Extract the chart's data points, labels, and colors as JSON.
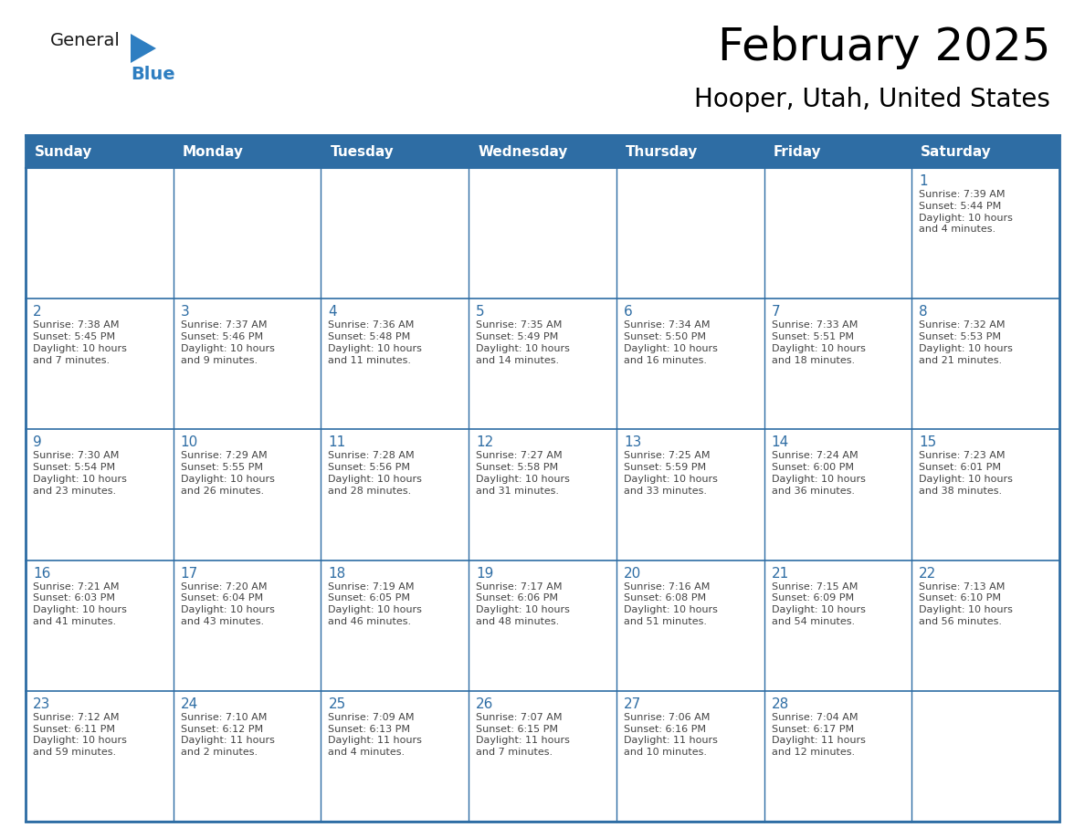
{
  "title": "February 2025",
  "subtitle": "Hooper, Utah, United States",
  "header_bg": "#2E6DA4",
  "header_text": "#FFFFFF",
  "cell_bg_white": "#FFFFFF",
  "cell_bg_light": "#F2F2F2",
  "border_color": "#2E6DA4",
  "border_color_light": "#AAAAAA",
  "day_number_color": "#2E6DA4",
  "cell_text_color": "#444444",
  "days_of_week": [
    "Sunday",
    "Monday",
    "Tuesday",
    "Wednesday",
    "Thursday",
    "Friday",
    "Saturday"
  ],
  "weeks": [
    [
      {
        "day": "",
        "text": ""
      },
      {
        "day": "",
        "text": ""
      },
      {
        "day": "",
        "text": ""
      },
      {
        "day": "",
        "text": ""
      },
      {
        "day": "",
        "text": ""
      },
      {
        "day": "",
        "text": ""
      },
      {
        "day": "1",
        "text": "Sunrise: 7:39 AM\nSunset: 5:44 PM\nDaylight: 10 hours\nand 4 minutes."
      }
    ],
    [
      {
        "day": "2",
        "text": "Sunrise: 7:38 AM\nSunset: 5:45 PM\nDaylight: 10 hours\nand 7 minutes."
      },
      {
        "day": "3",
        "text": "Sunrise: 7:37 AM\nSunset: 5:46 PM\nDaylight: 10 hours\nand 9 minutes."
      },
      {
        "day": "4",
        "text": "Sunrise: 7:36 AM\nSunset: 5:48 PM\nDaylight: 10 hours\nand 11 minutes."
      },
      {
        "day": "5",
        "text": "Sunrise: 7:35 AM\nSunset: 5:49 PM\nDaylight: 10 hours\nand 14 minutes."
      },
      {
        "day": "6",
        "text": "Sunrise: 7:34 AM\nSunset: 5:50 PM\nDaylight: 10 hours\nand 16 minutes."
      },
      {
        "day": "7",
        "text": "Sunrise: 7:33 AM\nSunset: 5:51 PM\nDaylight: 10 hours\nand 18 minutes."
      },
      {
        "day": "8",
        "text": "Sunrise: 7:32 AM\nSunset: 5:53 PM\nDaylight: 10 hours\nand 21 minutes."
      }
    ],
    [
      {
        "day": "9",
        "text": "Sunrise: 7:30 AM\nSunset: 5:54 PM\nDaylight: 10 hours\nand 23 minutes."
      },
      {
        "day": "10",
        "text": "Sunrise: 7:29 AM\nSunset: 5:55 PM\nDaylight: 10 hours\nand 26 minutes."
      },
      {
        "day": "11",
        "text": "Sunrise: 7:28 AM\nSunset: 5:56 PM\nDaylight: 10 hours\nand 28 minutes."
      },
      {
        "day": "12",
        "text": "Sunrise: 7:27 AM\nSunset: 5:58 PM\nDaylight: 10 hours\nand 31 minutes."
      },
      {
        "day": "13",
        "text": "Sunrise: 7:25 AM\nSunset: 5:59 PM\nDaylight: 10 hours\nand 33 minutes."
      },
      {
        "day": "14",
        "text": "Sunrise: 7:24 AM\nSunset: 6:00 PM\nDaylight: 10 hours\nand 36 minutes."
      },
      {
        "day": "15",
        "text": "Sunrise: 7:23 AM\nSunset: 6:01 PM\nDaylight: 10 hours\nand 38 minutes."
      }
    ],
    [
      {
        "day": "16",
        "text": "Sunrise: 7:21 AM\nSunset: 6:03 PM\nDaylight: 10 hours\nand 41 minutes."
      },
      {
        "day": "17",
        "text": "Sunrise: 7:20 AM\nSunset: 6:04 PM\nDaylight: 10 hours\nand 43 minutes."
      },
      {
        "day": "18",
        "text": "Sunrise: 7:19 AM\nSunset: 6:05 PM\nDaylight: 10 hours\nand 46 minutes."
      },
      {
        "day": "19",
        "text": "Sunrise: 7:17 AM\nSunset: 6:06 PM\nDaylight: 10 hours\nand 48 minutes."
      },
      {
        "day": "20",
        "text": "Sunrise: 7:16 AM\nSunset: 6:08 PM\nDaylight: 10 hours\nand 51 minutes."
      },
      {
        "day": "21",
        "text": "Sunrise: 7:15 AM\nSunset: 6:09 PM\nDaylight: 10 hours\nand 54 minutes."
      },
      {
        "day": "22",
        "text": "Sunrise: 7:13 AM\nSunset: 6:10 PM\nDaylight: 10 hours\nand 56 minutes."
      }
    ],
    [
      {
        "day": "23",
        "text": "Sunrise: 7:12 AM\nSunset: 6:11 PM\nDaylight: 10 hours\nand 59 minutes."
      },
      {
        "day": "24",
        "text": "Sunrise: 7:10 AM\nSunset: 6:12 PM\nDaylight: 11 hours\nand 2 minutes."
      },
      {
        "day": "25",
        "text": "Sunrise: 7:09 AM\nSunset: 6:13 PM\nDaylight: 11 hours\nand 4 minutes."
      },
      {
        "day": "26",
        "text": "Sunrise: 7:07 AM\nSunset: 6:15 PM\nDaylight: 11 hours\nand 7 minutes."
      },
      {
        "day": "27",
        "text": "Sunrise: 7:06 AM\nSunset: 6:16 PM\nDaylight: 11 hours\nand 10 minutes."
      },
      {
        "day": "28",
        "text": "Sunrise: 7:04 AM\nSunset: 6:17 PM\nDaylight: 11 hours\nand 12 minutes."
      },
      {
        "day": "",
        "text": ""
      }
    ]
  ],
  "logo_general_color": "#1a1a1a",
  "logo_blue_color": "#2E7EC1",
  "logo_triangle_color": "#2E7EC1"
}
